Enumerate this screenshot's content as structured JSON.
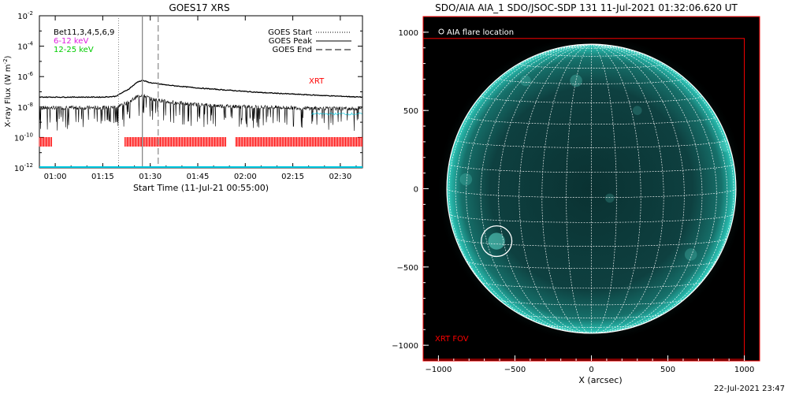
{
  "chart_data": [
    {
      "type": "line",
      "title": "GOES17 XRS",
      "xlabel": "Start Time (11-Jul-21 00:55:00)",
      "ylabel": "X-ray Flux (W m",
      "ylabel_sup": "-2",
      "ylabel_close": ")",
      "y_scale": "log",
      "ylim": [
        "1e-12",
        "1e-2"
      ],
      "y_ticks": [
        {
          "base": "10",
          "exp": "-2",
          "value": -2
        },
        {
          "base": "10",
          "exp": "-4",
          "value": -4
        },
        {
          "base": "10",
          "exp": "-6",
          "value": -6
        },
        {
          "base": "10",
          "exp": "-8",
          "value": -8
        },
        {
          "base": "10",
          "exp": "-10",
          "value": -10
        },
        {
          "base": "10",
          "exp": "-12",
          "value": -12
        }
      ],
      "xlim_minutes": [
        0,
        102
      ],
      "x_ticks": [
        {
          "label": "01:00",
          "t": 5
        },
        {
          "label": "01:15",
          "t": 20
        },
        {
          "label": "01:30",
          "t": 35
        },
        {
          "label": "01:45",
          "t": 50
        },
        {
          "label": "02:00",
          "t": 65
        },
        {
          "label": "02:15",
          "t": 80
        },
        {
          "label": "02:30",
          "t": 95
        }
      ],
      "legend_right": [
        {
          "name": "GOES Start",
          "style": "dotted"
        },
        {
          "name": "GOES Peak",
          "style": "solid"
        },
        {
          "name": "GOES End",
          "style": "dashed"
        }
      ],
      "legend_left": [
        {
          "name": "Bet11,3,4,5,6,9",
          "color": "#000000"
        },
        {
          "name": "6-12 keV",
          "color": "#e020e0"
        },
        {
          "name": "12-25 keV",
          "color": "#00cc00"
        }
      ],
      "markers_t": {
        "start": 25,
        "peak": 32.5,
        "end": 37.5
      },
      "labels": {
        "xrt": "XRT"
      },
      "series": [
        {
          "name": "",
          "t": [
            0,
            10,
            20,
            24,
            28,
            31,
            32.5,
            35,
            40,
            50,
            60,
            70,
            80,
            90,
            102
          ],
          "logflux": [
            -7.35,
            -7.35,
            -7.35,
            -7.3,
            -6.85,
            -6.35,
            -6.25,
            -6.4,
            -6.55,
            -6.75,
            -6.9,
            -7.05,
            -7.15,
            -7.25,
            -7.35
          ]
        },
        {
          "name": "",
          "t": [
            0,
            10,
            20,
            24,
            28,
            31,
            32.5,
            35,
            40,
            50,
            60,
            70,
            80,
            90,
            102
          ],
          "logflux": [
            -8.05,
            -8.05,
            -8.05,
            -8.0,
            -7.7,
            -7.3,
            -7.2,
            -7.45,
            -7.65,
            -7.85,
            -7.95,
            -8.0,
            -8.05,
            -8.1,
            -8.1
          ]
        }
      ],
      "xrt_coverage_t": [
        [
          0,
          4
        ],
        [
          27,
          59
        ],
        [
          62,
          102
        ]
      ]
    },
    {
      "type": "image",
      "title": "SDO/AIA AIA_1 SDO/JSOC-SDP 131 11-Jul-2021 01:32:06.620 UT",
      "xlabel": "X (arcsec)",
      "xlim": [
        -1100,
        1100
      ],
      "ylim": [
        -1100,
        1100
      ],
      "x_ticks": [
        -1000,
        -500,
        0,
        500,
        1000
      ],
      "y_ticks": [
        1000,
        500,
        0,
        -500,
        -1000
      ],
      "x_tick_labels": [
        "−1000",
        "−500",
        "0",
        "500",
        "1000"
      ],
      "y_tick_labels": [
        "1000",
        "500",
        "0",
        "−500",
        "−1000"
      ],
      "sun_radius": 945,
      "flare": {
        "x": -620,
        "y": -335,
        "r": 100
      },
      "xrt_fov": {
        "x0": -1100,
        "x1": 1000,
        "y0": -1090,
        "y1": 960
      },
      "legend": "AIA flare location",
      "fov_label": "XRT FOV",
      "timestamp": "22-Jul-2021 23:47"
    }
  ],
  "colors": {
    "xrt": "#ff0000",
    "cyan": "#00c8e0",
    "sun_core": "#0d3c3c",
    "sun_limb": "#1e9a90",
    "grid": "#ffffff"
  }
}
